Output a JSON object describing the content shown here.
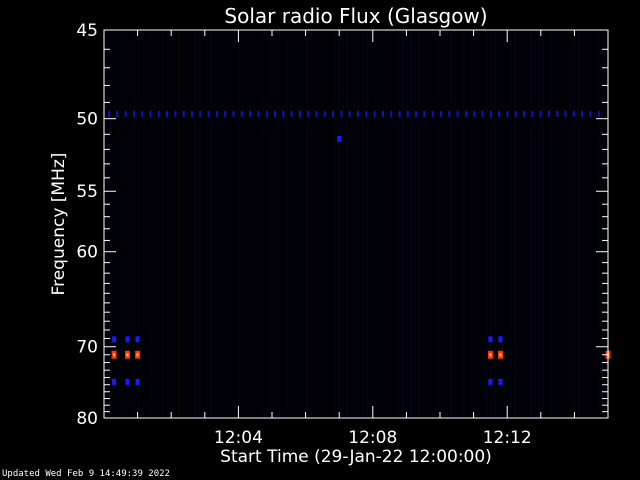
{
  "chart_data": {
    "type": "heatmap",
    "title": "Solar radio Flux (Glasgow)",
    "xlabel": "Start Time (29-Jan-22 12:00:00)",
    "ylabel": "Frequency [MHz]",
    "x_unit": "minutes after 12:00",
    "xlim": [
      0,
      15
    ],
    "ylim": [
      80,
      45
    ],
    "y_scale": "reciprocal",
    "x_ticks": [
      {
        "value": 4,
        "label": "12:04"
      },
      {
        "value": 8,
        "label": "12:08"
      },
      {
        "value": 12,
        "label": "12:12"
      }
    ],
    "y_ticks": [
      {
        "value": 45,
        "label": "45"
      },
      {
        "value": 50,
        "label": "50"
      },
      {
        "value": 55,
        "label": "55"
      },
      {
        "value": 60,
        "label": "60"
      },
      {
        "value": 70,
        "label": "70"
      },
      {
        "value": 80,
        "label": "80"
      }
    ],
    "background_color": "#000000",
    "frame_color": "#ffffff",
    "colors": {
      "low": "#000033",
      "mid": "#1a1aff",
      "high": "#ff3010",
      "peak": "#ffdd00"
    },
    "hotspots": [
      {
        "time": 0.3,
        "freq": 71.0,
        "level": "high"
      },
      {
        "time": 0.7,
        "freq": 71.0,
        "level": "high"
      },
      {
        "time": 1.0,
        "freq": 71.0,
        "level": "high"
      },
      {
        "time": 11.5,
        "freq": 71.0,
        "level": "high"
      },
      {
        "time": 11.8,
        "freq": 71.0,
        "level": "high"
      },
      {
        "time": 15.0,
        "freq": 71.0,
        "level": "high"
      },
      {
        "time": 0.3,
        "freq": 69.1,
        "level": "mid"
      },
      {
        "time": 0.7,
        "freq": 69.1,
        "level": "mid"
      },
      {
        "time": 1.0,
        "freq": 69.1,
        "level": "mid"
      },
      {
        "time": 11.5,
        "freq": 69.1,
        "level": "mid"
      },
      {
        "time": 11.8,
        "freq": 69.1,
        "level": "mid"
      },
      {
        "time": 0.3,
        "freq": 74.6,
        "level": "mid"
      },
      {
        "time": 0.7,
        "freq": 74.6,
        "level": "mid"
      },
      {
        "time": 1.0,
        "freq": 74.6,
        "level": "mid"
      },
      {
        "time": 11.5,
        "freq": 74.6,
        "level": "mid"
      },
      {
        "time": 11.8,
        "freq": 74.6,
        "level": "mid"
      },
      {
        "time": 7.0,
        "freq": 51.3,
        "level": "mid"
      }
    ],
    "band_freq": 49.7
  },
  "footer": {
    "updated": "Updated Wed Feb  9 14:49:39 2022"
  }
}
